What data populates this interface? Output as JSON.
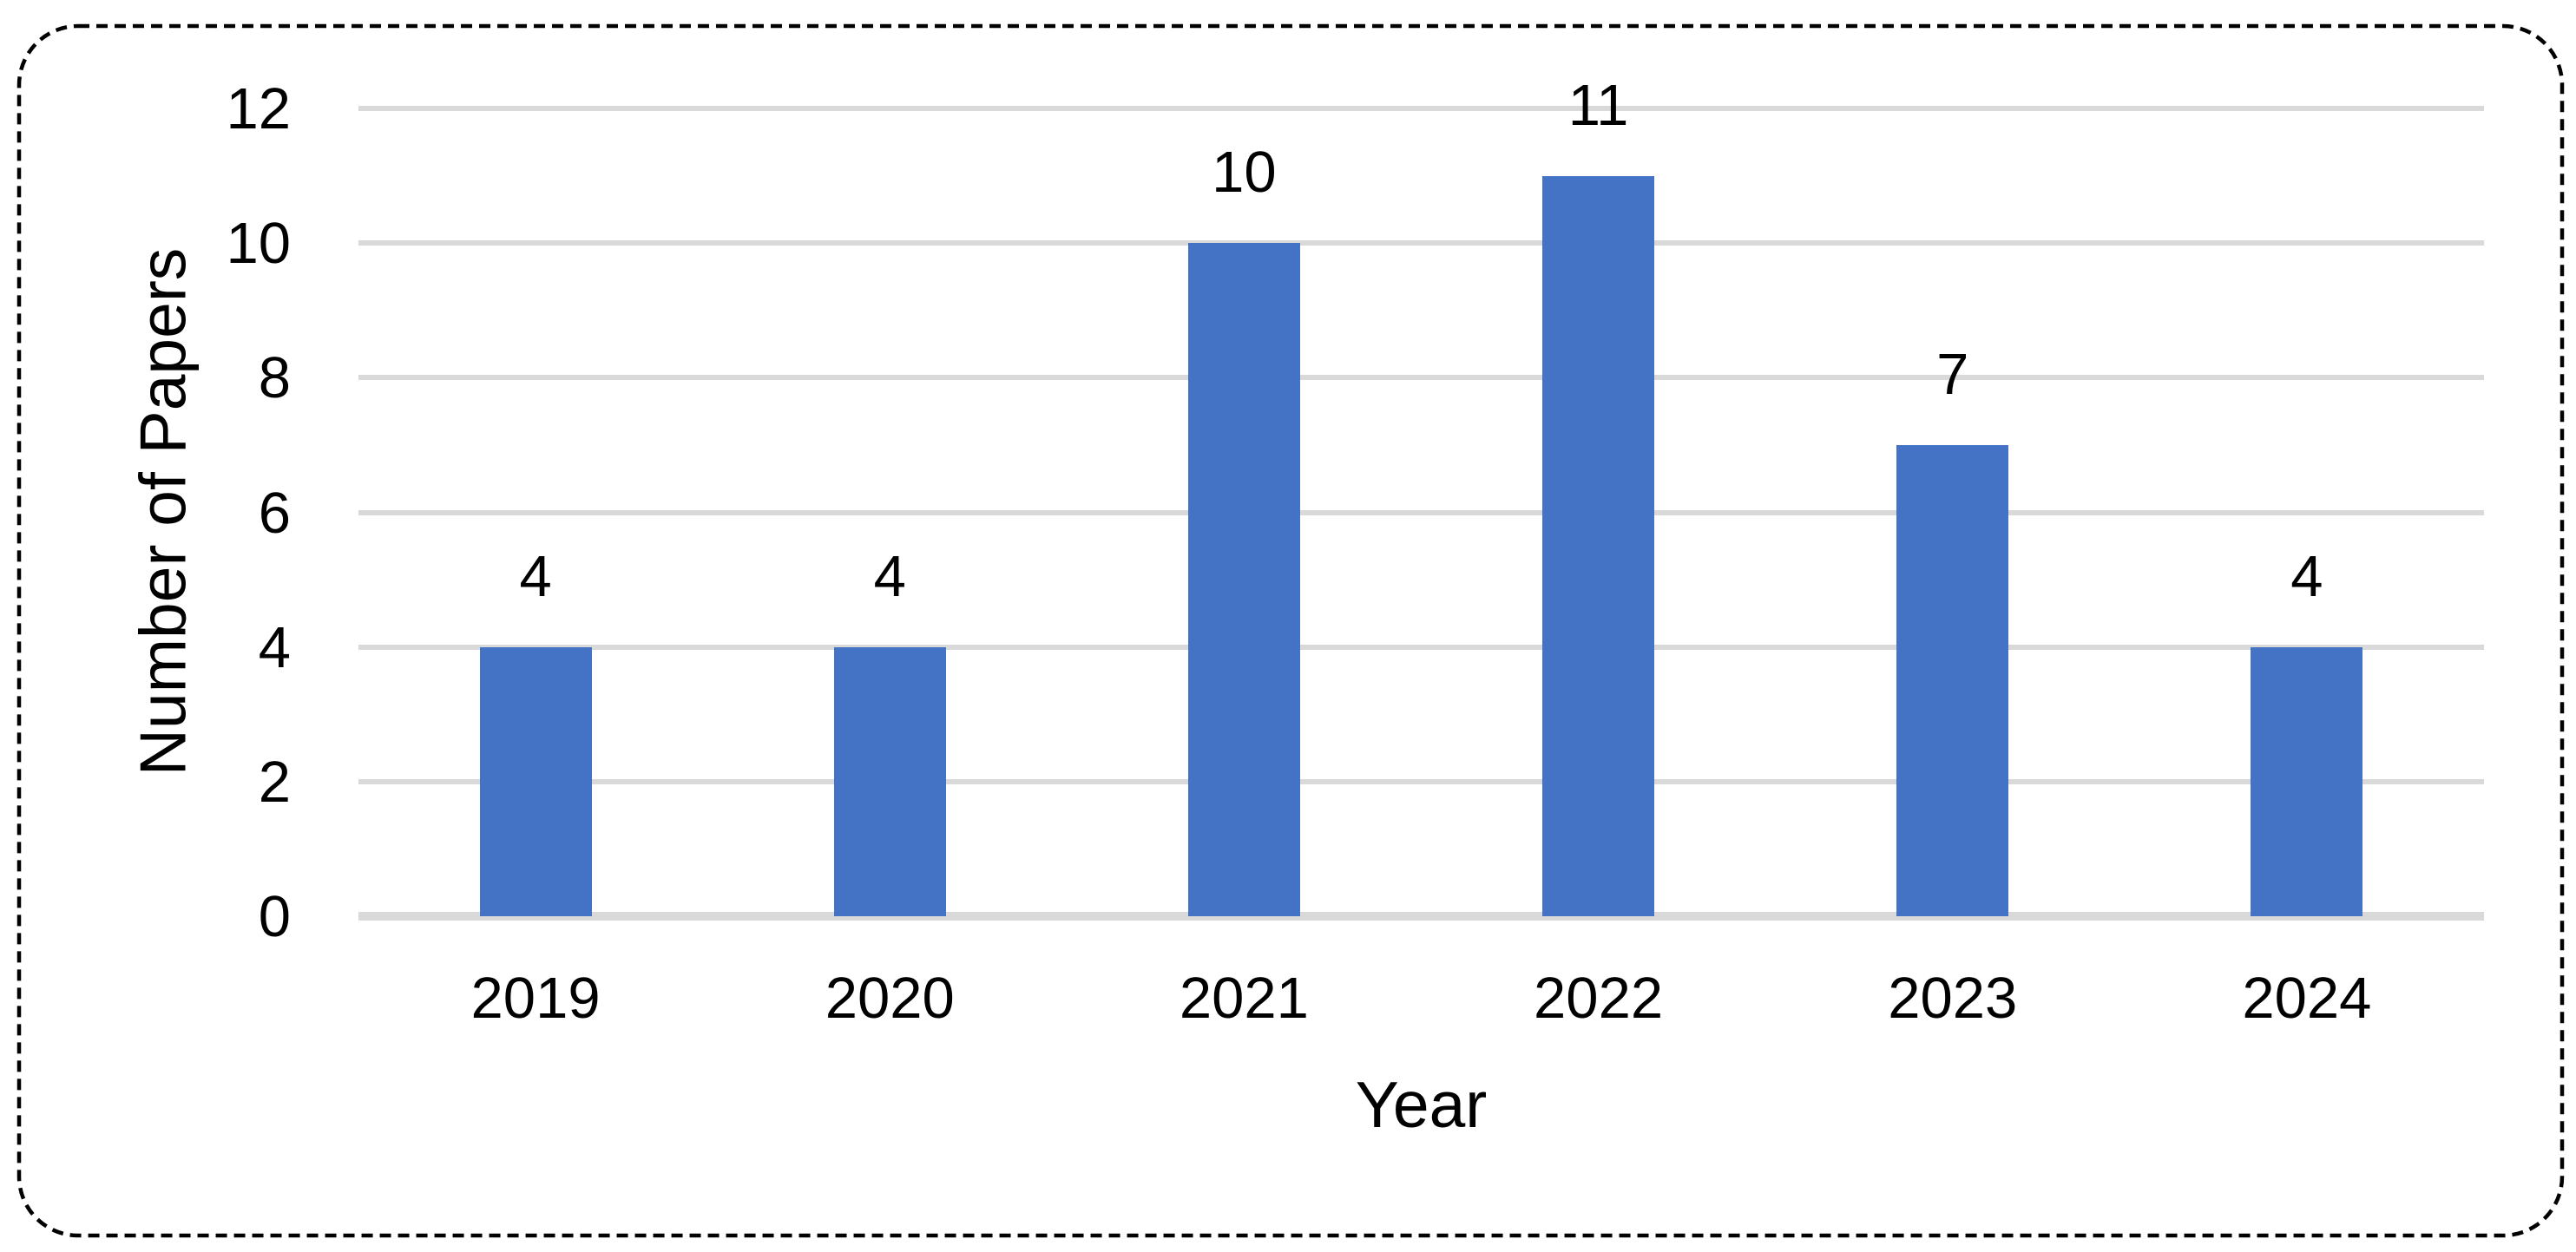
{
  "chart_data": {
    "type": "bar",
    "categories": [
      "2019",
      "2020",
      "2021",
      "2022",
      "2023",
      "2024"
    ],
    "values": [
      4,
      4,
      10,
      11,
      7,
      4
    ],
    "data_labels": [
      "4",
      "4",
      "10",
      "11",
      "7",
      "4"
    ],
    "xlabel": "Year",
    "ylabel": "Number of Papers",
    "ylim": [
      0,
      12
    ],
    "yticks": [
      0,
      2,
      4,
      6,
      8,
      10,
      12
    ],
    "grid": "horizontal-only",
    "legend": "none",
    "colors": {
      "bar": "#4472C4",
      "gridline": "#D9D9D9",
      "axis_line": "#D9D9D9",
      "label_text": "#000000",
      "frame_border": "#000000",
      "background": "#FFFFFF"
    },
    "frame_style": "dashed-rounded-rectangle"
  }
}
